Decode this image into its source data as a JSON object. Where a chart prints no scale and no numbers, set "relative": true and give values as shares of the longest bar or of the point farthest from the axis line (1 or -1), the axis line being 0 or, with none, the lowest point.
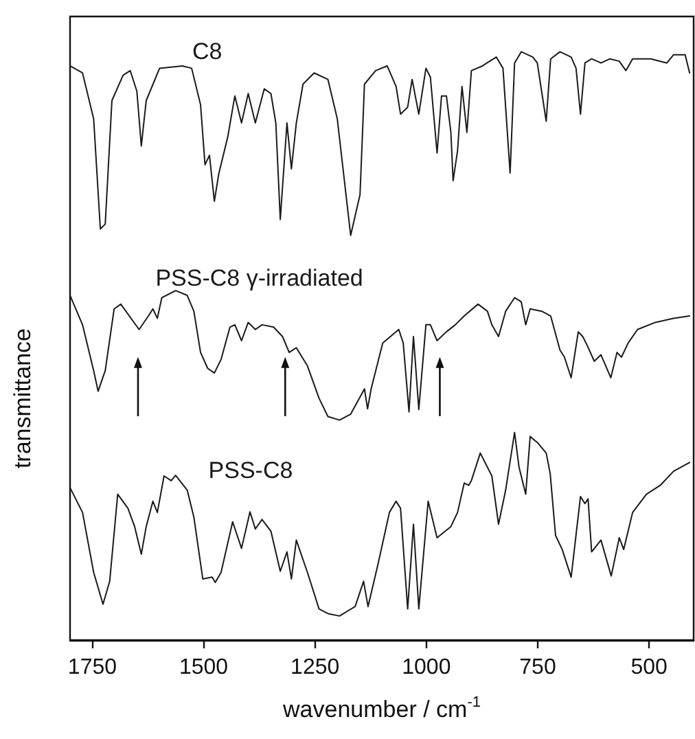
{
  "chart_data": {
    "type": "line",
    "xlabel": "wavenumber / cm$^{-1}$",
    "ylabel": "transmittance",
    "relative": true,
    "xlim": [
      1800,
      400
    ],
    "xticks": [
      1750,
      1500,
      1250,
      1000,
      750,
      500
    ],
    "tick_labels": "x",
    "legend": false,
    "grid": false,
    "marker": "none",
    "line_style": "solid",
    "series": [
      {
        "name": "C8",
        "color": "#1a1a1a",
        "x": [
          1800,
          1772,
          1747,
          1732,
          1721,
          1706,
          1681,
          1665,
          1650,
          1640,
          1629,
          1599,
          1548,
          1527,
          1507,
          1497,
          1487,
          1476,
          1466,
          1446,
          1430,
          1415,
          1400,
          1384,
          1364,
          1349,
          1338,
          1328,
          1313,
          1303,
          1292,
          1277,
          1252,
          1221,
          1200,
          1170,
          1149,
          1139,
          1114,
          1088,
          1068,
          1058,
          1042,
          1032,
          1017,
          1001,
          991,
          976,
          966,
          955,
          945,
          940,
          930,
          920,
          909,
          899,
          874,
          864,
          843,
          828,
          812,
          802,
          787,
          761,
          751,
          731,
          721,
          700,
          675,
          664,
          654,
          644,
          629,
          608,
          588,
          567,
          552,
          537,
          496,
          460,
          445,
          419,
          409
        ],
        "values": [
          0.976,
          0.964,
          0.886,
          0.699,
          0.707,
          0.917,
          0.96,
          0.968,
          0.933,
          0.84,
          0.917,
          0.972,
          0.976,
          0.972,
          0.91,
          0.808,
          0.824,
          0.746,
          0.793,
          0.855,
          0.925,
          0.879,
          0.929,
          0.879,
          0.937,
          0.929,
          0.879,
          0.715,
          0.879,
          0.801,
          0.879,
          0.945,
          0.964,
          0.953,
          0.886,
          0.688,
          0.757,
          0.945,
          0.968,
          0.976,
          0.941,
          0.894,
          0.906,
          0.953,
          0.894,
          0.972,
          0.957,
          0.828,
          0.925,
          0.925,
          0.863,
          0.781,
          0.832,
          0.941,
          0.863,
          0.968,
          0.976,
          0.981,
          0.991,
          0.972,
          0.794,
          0.981,
          1,
          0.991,
          0.981,
          0.882,
          0.988,
          1,
          0.991,
          0.972,
          0.894,
          0.981,
          0.988,
          0.981,
          0.988,
          0.984,
          0.968,
          0.988,
          0.988,
          0.981,
          0.995,
          0.995,
          0.964
        ]
      },
      {
        "name": "PSS-C8 γ-irradiated",
        "color": "#1a1a1a",
        "x": [
          1800,
          1772,
          1747,
          1737,
          1721,
          1701,
          1686,
          1645,
          1624,
          1614,
          1604,
          1594,
          1563,
          1537,
          1522,
          1507,
          1491,
          1476,
          1461,
          1441,
          1430,
          1415,
          1400,
          1384,
          1369,
          1343,
          1323,
          1308,
          1292,
          1267,
          1241,
          1221,
          1195,
          1170,
          1139,
          1132,
          1124,
          1098,
          1062,
          1052,
          1039,
          1029,
          1017,
          1001,
          991,
          976,
          955,
          935,
          915,
          884,
          863,
          853,
          838,
          822,
          802,
          787,
          777,
          767,
          741,
          721,
          700,
          690,
          675,
          659,
          649,
          639,
          623,
          608,
          586,
          572,
          562,
          547,
          526,
          486,
          445,
          409
        ],
        "values": [
          0.586,
          0.536,
          0.458,
          0.423,
          0.458,
          0.563,
          0.571,
          0.528,
          0.551,
          0.563,
          0.547,
          0.582,
          0.594,
          0.586,
          0.559,
          0.489,
          0.462,
          0.454,
          0.477,
          0.532,
          0.536,
          0.509,
          0.54,
          0.528,
          0.536,
          0.532,
          0.516,
          0.489,
          0.497,
          0.466,
          0.411,
          0.38,
          0.374,
          0.384,
          0.427,
          0.393,
          0.427,
          0.505,
          0.528,
          0.505,
          0.388,
          0.516,
          0.392,
          0.536,
          0.536,
          0.509,
          0.524,
          0.536,
          0.551,
          0.571,
          0.559,
          0.536,
          0.516,
          0.559,
          0.582,
          0.575,
          0.536,
          0.563,
          0.559,
          0.551,
          0.493,
          0.481,
          0.446,
          0.524,
          0.516,
          0.501,
          0.474,
          0.485,
          0.446,
          0.489,
          0.481,
          0.505,
          0.528,
          0.54,
          0.547,
          0.551
        ]
      },
      {
        "name": "PSS-C8",
        "color": "#1a1a1a",
        "x": [
          1800,
          1772,
          1747,
          1726,
          1711,
          1693,
          1670,
          1655,
          1640,
          1629,
          1614,
          1604,
          1589,
          1573,
          1563,
          1537,
          1522,
          1502,
          1481,
          1474,
          1461,
          1435,
          1415,
          1396,
          1384,
          1369,
          1349,
          1328,
          1313,
          1303,
          1292,
          1267,
          1241,
          1221,
          1195,
          1160,
          1141,
          1131,
          1108,
          1083,
          1068,
          1058,
          1042,
          1029,
          1017,
          996,
          976,
          945,
          930,
          915,
          905,
          899,
          879,
          853,
          838,
          822,
          802,
          792,
          777,
          767,
          751,
          731,
          722,
          710,
          695,
          675,
          654,
          644,
          637,
          629,
          608,
          585,
          567,
          557,
          537,
          506,
          475,
          445,
          409
        ],
        "values": [
          0.259,
          0.217,
          0.115,
          0.061,
          0.1,
          0.248,
          0.224,
          0.193,
          0.146,
          0.193,
          0.236,
          0.217,
          0.279,
          0.271,
          0.28,
          0.255,
          0.209,
          0.104,
          0.107,
          0.098,
          0.115,
          0.201,
          0.156,
          0.218,
          0.189,
          0.205,
          0.185,
          0.117,
          0.15,
          0.104,
          0.17,
          0.115,
          0.053,
          0.045,
          0.041,
          0.057,
          0.1,
          0.057,
          0.131,
          0.217,
          0.236,
          0.224,
          0.053,
          0.197,
          0.053,
          0.236,
          0.174,
          0.193,
          0.217,
          0.267,
          0.263,
          0.271,
          0.318,
          0.279,
          0.197,
          0.255,
          0.353,
          0.294,
          0.248,
          0.346,
          0.336,
          0.318,
          0.283,
          0.178,
          0.154,
          0.107,
          0.244,
          0.232,
          0.24,
          0.15,
          0.17,
          0.109,
          0.174,
          0.154,
          0.217,
          0.248,
          0.263,
          0.287,
          0.302
        ]
      }
    ]
  }
}
